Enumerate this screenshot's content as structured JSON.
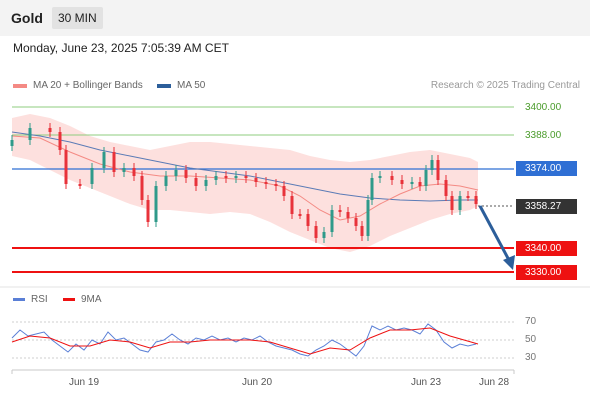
{
  "header": {
    "title": "Gold",
    "timeframe": "30 MIN"
  },
  "datetime": "Monday, June 23, 2025 7:05:39 AM CET",
  "legend": [
    {
      "label": "MA 20 + Bollinger Bands",
      "color": "#f48a84"
    },
    {
      "label": "MA 50",
      "color": "#2c5e9a"
    }
  ],
  "research": "Research © 2025 Trading Central",
  "price_levels": [
    {
      "label": "3400.00",
      "style": "green"
    },
    {
      "label": "3388.00",
      "style": "green"
    },
    {
      "label": "3374.00",
      "style": "blue"
    },
    {
      "label": "3358.27",
      "style": "dark"
    },
    {
      "label": "3340.00",
      "style": "red"
    },
    {
      "label": "3330.00",
      "style": "red"
    }
  ],
  "rsi_legend": [
    {
      "label": "RSI",
      "color": "#5a7fd6"
    },
    {
      "label": "9MA",
      "color": "#ee1111"
    }
  ],
  "rsi_levels": [
    "70",
    "50",
    "30"
  ],
  "x_axis": [
    "Jun 19",
    "Jun 20",
    "Jun 23",
    "Jun 28"
  ],
  "colors": {
    "up": "#2f9a8a",
    "down": "#e8323a",
    "resistance": "#7cc36a",
    "pivot": "#2f6fd4",
    "support": "#ee1111",
    "band": "#fde0de"
  }
}
